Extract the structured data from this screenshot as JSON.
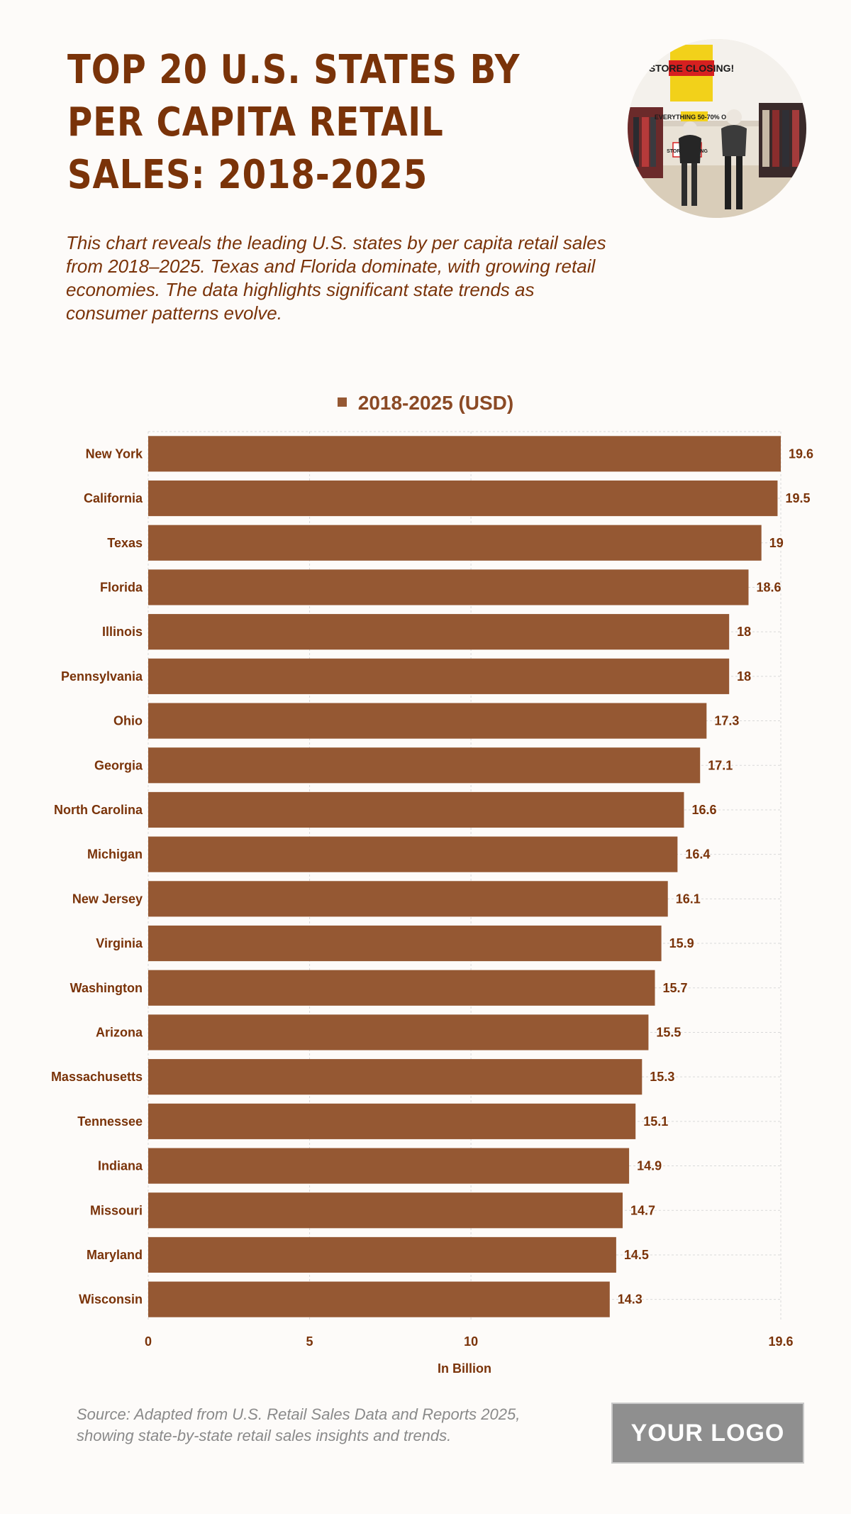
{
  "header": {
    "title": "TOP 20 U.S. STATES BY PER CAPITA RETAIL SALES: 2018-2025",
    "subtitle": "This chart reveals the leading U.S. states by per capita retail sales from 2018–2025. Texas and Florida dominate, with growing retail economies. The data highlights significant state trends as consumer patterns evolve."
  },
  "photo": {
    "icon": "store-closing-photo",
    "sign_text": [
      "STORE CLOSING!",
      "EVERYTHING 50-70% OFF",
      "STORE CLOSING"
    ]
  },
  "footer": {
    "source": "Source: Adapted from U.S. Retail Sales Data and Reports 2025, showing state-by-state retail sales insights and trends.",
    "logo": "YOUR LOGO"
  },
  "colors": {
    "bar": "#955833",
    "title": "#7a3309",
    "label": "#7a3309",
    "grid": "#d9d9d9"
  },
  "chart_data": {
    "type": "bar",
    "orientation": "horizontal",
    "legend": [
      "2018-2025 (USD)"
    ],
    "legend_position": "top",
    "xlabel": "In Billion",
    "ylabel": "",
    "xlim": [
      0,
      19.6
    ],
    "xticks": [
      0,
      5,
      10,
      19.6
    ],
    "grid": true,
    "categories": [
      "New York",
      "California",
      "Texas",
      "Florida",
      "Illinois",
      "Pennsylvania",
      "Ohio",
      "Georgia",
      "North Carolina",
      "Michigan",
      "New Jersey",
      "Virginia",
      "Washington",
      "Arizona",
      "Massachusetts",
      "Tennessee",
      "Indiana",
      "Missouri",
      "Maryland",
      "Wisconsin"
    ],
    "series": [
      {
        "name": "2018-2025 (USD)",
        "values": [
          19.6,
          19.5,
          19,
          18.6,
          18,
          18,
          17.3,
          17.1,
          16.6,
          16.4,
          16.1,
          15.9,
          15.7,
          15.5,
          15.3,
          15.1,
          14.9,
          14.7,
          14.5,
          14.3
        ]
      }
    ]
  }
}
